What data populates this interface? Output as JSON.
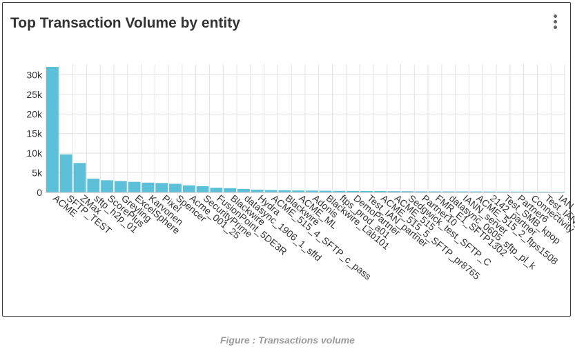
{
  "header": {
    "title": "Top Transaction Volume by entity"
  },
  "menu": {
    "icon": "more-vertical-icon"
  },
  "caption": "Figure : Transactions volume",
  "colors": {
    "bar": "#5bc0d8",
    "grid": "#e3e3e3",
    "axis": "#333333"
  },
  "chart_data": {
    "type": "bar",
    "ylim": [
      0,
      32000
    ],
    "yticks": [
      0,
      5000,
      10000,
      15000,
      20000,
      25000,
      30000
    ],
    "ytick_labels": [
      "0",
      "5k",
      "10k",
      "15k",
      "20k",
      "25k",
      "30k"
    ],
    "grid": true,
    "categories": [
      "ACME",
      "SFTP_TEST",
      "ZMax",
      "sftp_h2p_01",
      "ScorePlus",
      "Greyling",
      "ExcelSphere",
      "Karvonen",
      "Pixel",
      "Spencer",
      "Acme_001_25",
      "SecurityPrime",
      "FusionPoint_5DE3R",
      "Blackwire",
      "datasync_1906_1_sffd",
      "Hydra",
      "ACME_515_4_SFTP_c_pass",
      "Blackwire",
      "ACME_ML",
      "Adonis",
      "Blackwire_Lab101",
      "ftps_prod_a01",
      "DemoPartner",
      "Test_IAN_partner",
      "ACME_515_5_SFTP_pr8765",
      "ACME_515",
      "Sedgwick_test_SFTP_C",
      "Partner10",
      "FMR_E1_SFTP1302",
      "datasync_0605_sftp_pl_k",
      "IANN_server",
      "ACME_515_2_ftps1508",
      "2142_partner",
      "Test_SMB_kpop",
      "Partner6",
      "Connectivity",
      "Test_IAN_L",
      "IAN_a"
    ],
    "values": [
      32000,
      9700,
      7500,
      3500,
      3100,
      2900,
      2700,
      2500,
      2400,
      2200,
      1800,
      1600,
      1200,
      1100,
      900,
      700,
      600,
      550,
      500,
      460,
      430,
      400,
      380,
      360,
      340,
      320,
      300,
      280,
      270,
      260,
      250,
      240,
      230,
      220,
      210,
      200,
      190,
      180
    ]
  }
}
